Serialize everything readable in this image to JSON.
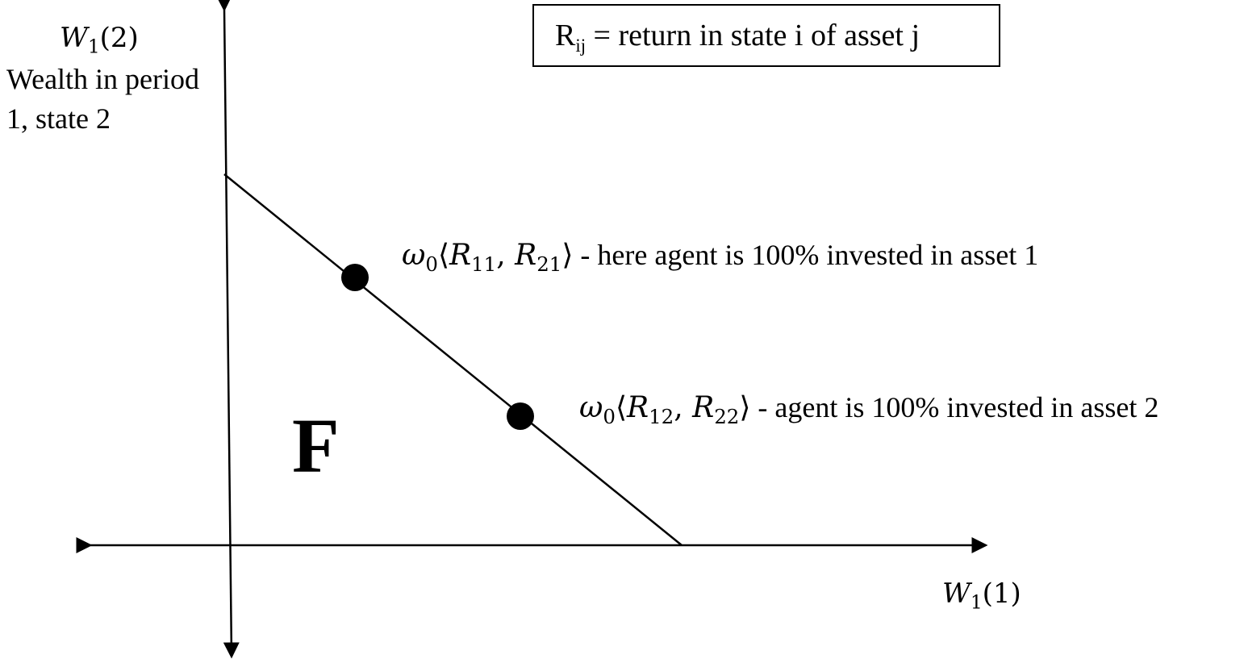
{
  "definition_box": {
    "symbol": "R",
    "subscript": "ij",
    "text": " = return in state i of asset j"
  },
  "y_axis": {
    "symbol": "W",
    "symbol_subscript": "1",
    "symbol_arg": "(2)",
    "caption": "Wealth in period 1, state 2"
  },
  "x_axis": {
    "symbol": "W",
    "symbol_subscript": "1",
    "symbol_arg": "(1)"
  },
  "region": {
    "label": "F"
  },
  "points": [
    {
      "omega": "ω",
      "omega_sub": "0",
      "open": "⟨",
      "r_a": "R",
      "r_a_sub": "11",
      "comma": ", ",
      "r_b": "R",
      "r_b_sub": "21",
      "close": "⟩",
      "description": " - here agent is 100% invested in asset 1"
    },
    {
      "omega": "ω",
      "omega_sub": "0",
      "open": "⟨",
      "r_a": "R",
      "r_a_sub": "12",
      "comma": ", ",
      "r_b": "R",
      "r_b_sub": "22",
      "close": "⟩",
      "description": " - agent is 100% invested in asset 2"
    }
  ],
  "colors": {
    "line": "#000000",
    "background": "#ffffff"
  }
}
